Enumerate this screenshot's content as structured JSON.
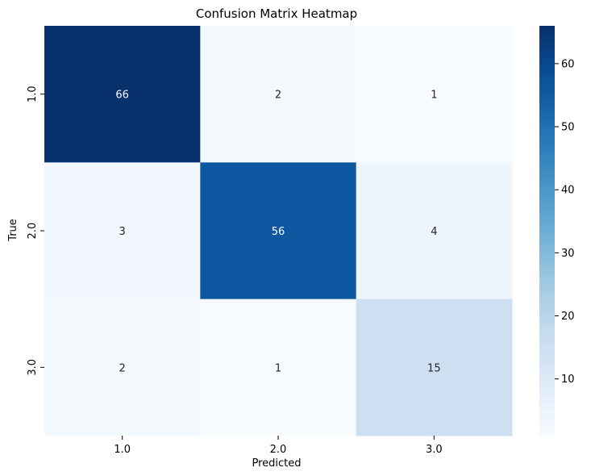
{
  "chart_data": {
    "type": "heatmap",
    "title": "Confusion Matrix Heatmap",
    "xlabel": "Predicted",
    "ylabel": "True",
    "x_categories": [
      "1.0",
      "2.0",
      "3.0"
    ],
    "y_categories": [
      "1.0",
      "2.0",
      "3.0"
    ],
    "values": [
      [
        66,
        2,
        1
      ],
      [
        3,
        56,
        4
      ],
      [
        2,
        1,
        15
      ]
    ],
    "colormap": "Blues",
    "color_range": [
      1,
      66
    ],
    "colorbar_ticks": [
      10,
      20,
      30,
      40,
      50,
      60
    ],
    "annotations": true,
    "grid": false
  }
}
